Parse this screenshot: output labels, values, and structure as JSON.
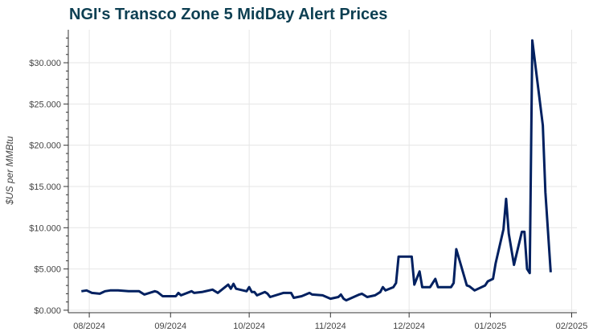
{
  "chart_data": {
    "type": "line",
    "title": "NGI's Transco Zone 5 MidDay Alert Prices",
    "xlabel": "",
    "ylabel": "$US per MMBtu",
    "xlim": [
      "2024-07-24",
      "2025-02-03"
    ],
    "ylim": [
      -0.3,
      34.0
    ],
    "grid": true,
    "line_color": "#002060",
    "x_ticks": [
      "2024-08-01",
      "2024-09-01",
      "2024-10-01",
      "2024-11-01",
      "2024-12-01",
      "2025-01-01",
      "2025-02-01"
    ],
    "x_tick_labels": [
      "08/2024",
      "09/2024",
      "10/2024",
      "11/2024",
      "12/2024",
      "01/2025",
      "02/2025"
    ],
    "y_ticks": [
      0,
      5,
      10,
      15,
      20,
      25,
      30
    ],
    "y_tick_labels": [
      "$0.000",
      "$5.000",
      "$10.000",
      "$15.000",
      "$20.000",
      "$25.000",
      "$30.000"
    ],
    "series": [
      {
        "x": [
          "2024-07-29",
          "2024-07-31",
          "2024-08-02",
          "2024-08-05",
          "2024-08-07",
          "2024-08-09",
          "2024-08-12",
          "2024-08-16",
          "2024-08-20",
          "2024-08-22",
          "2024-08-26",
          "2024-08-27",
          "2024-08-29",
          "2024-09-03",
          "2024-09-04",
          "2024-09-05",
          "2024-09-09",
          "2024-09-10",
          "2024-09-13",
          "2024-09-17",
          "2024-09-19",
          "2024-09-23",
          "2024-09-24",
          "2024-09-25",
          "2024-09-26",
          "2024-09-30",
          "2024-10-01",
          "2024-10-02",
          "2024-10-03",
          "2024-10-04",
          "2024-10-07",
          "2024-10-08",
          "2024-10-09",
          "2024-10-14",
          "2024-10-17",
          "2024-10-18",
          "2024-10-21",
          "2024-10-24",
          "2024-10-25",
          "2024-10-29",
          "2024-11-01",
          "2024-11-04",
          "2024-11-05",
          "2024-11-06",
          "2024-11-07",
          "2024-11-12",
          "2024-11-13",
          "2024-11-15",
          "2024-11-18",
          "2024-11-20",
          "2024-11-21",
          "2024-11-22",
          "2024-11-25",
          "2024-11-26",
          "2024-11-27",
          "2024-12-02",
          "2024-12-03",
          "2024-12-05",
          "2024-12-06",
          "2024-12-09",
          "2024-12-11",
          "2024-12-12",
          "2024-12-17",
          "2024-12-18",
          "2024-12-19",
          "2024-12-23",
          "2024-12-24",
          "2024-12-26",
          "2024-12-30",
          "2024-12-31",
          "2025-01-02",
          "2025-01-03",
          "2025-01-06",
          "2025-01-07",
          "2025-01-08",
          "2025-01-10",
          "2025-01-13",
          "2025-01-14",
          "2025-01-15",
          "2025-01-16",
          "2025-01-17",
          "2025-01-21",
          "2025-01-22",
          "2025-01-24"
        ],
        "values": [
          2.3,
          2.4,
          2.1,
          2.0,
          2.3,
          2.4,
          2.4,
          2.3,
          2.3,
          1.9,
          2.3,
          2.2,
          1.7,
          1.7,
          2.1,
          1.8,
          2.3,
          2.1,
          2.2,
          2.5,
          2.1,
          3.1,
          2.6,
          3.2,
          2.6,
          2.3,
          2.8,
          2.2,
          2.2,
          1.8,
          2.2,
          2.0,
          1.6,
          2.1,
          2.1,
          1.5,
          1.7,
          2.1,
          1.9,
          1.8,
          1.4,
          1.6,
          1.9,
          1.4,
          1.2,
          1.9,
          2.0,
          1.6,
          1.8,
          2.2,
          2.8,
          2.4,
          2.8,
          3.3,
          6.5,
          6.5,
          3.1,
          4.7,
          2.8,
          2.8,
          3.8,
          2.8,
          2.8,
          3.3,
          7.4,
          3.0,
          2.9,
          2.4,
          3.0,
          3.5,
          3.8,
          5.7,
          9.8,
          13.5,
          9.3,
          5.5,
          9.5,
          9.5,
          5.0,
          4.5,
          32.7,
          22.4,
          14.3,
          4.6
        ]
      }
    ]
  }
}
